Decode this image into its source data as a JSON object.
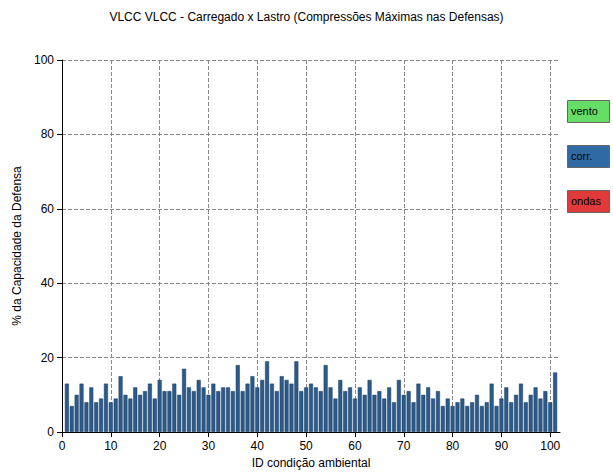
{
  "chart_data": {
    "type": "bar",
    "title": "VLCC VLCC - Carregado x Lastro (Compressões Máximas nas Defensas)",
    "x_label": "ID condição ambiental",
    "y_label": "% da Capacidade da Defensa",
    "x": [
      1,
      2,
      3,
      4,
      5,
      6,
      7,
      8,
      9,
      10,
      11,
      12,
      13,
      14,
      15,
      16,
      17,
      18,
      19,
      20,
      21,
      22,
      23,
      24,
      25,
      26,
      27,
      28,
      29,
      30,
      31,
      32,
      33,
      34,
      35,
      36,
      37,
      38,
      39,
      40,
      41,
      42,
      43,
      44,
      45,
      46,
      47,
      48,
      49,
      50,
      51,
      52,
      53,
      54,
      55,
      56,
      57,
      58,
      59,
      60,
      61,
      62,
      63,
      64,
      65,
      66,
      67,
      68,
      69,
      70,
      71,
      72,
      73,
      74,
      75,
      76,
      77,
      78,
      79,
      80,
      81,
      82,
      83,
      84,
      85,
      86,
      87,
      88,
      89,
      90,
      91,
      92,
      93,
      94,
      95,
      96,
      97,
      98,
      99,
      100,
      101
    ],
    "values": [
      13,
      7,
      10,
      13,
      8,
      12,
      8,
      9,
      13,
      8,
      9,
      15,
      10,
      9,
      12,
      10,
      11,
      13,
      9,
      14,
      11,
      11,
      13,
      10,
      17,
      12,
      11,
      14,
      12,
      10,
      13,
      11,
      12,
      12,
      11,
      18,
      11,
      13,
      15,
      12,
      14,
      19,
      13,
      11,
      15,
      14,
      13,
      19,
      11,
      12,
      13,
      12,
      11,
      18,
      12,
      9,
      14,
      11,
      12,
      9,
      12,
      10,
      14,
      10,
      11,
      9,
      12,
      8,
      14,
      10,
      11,
      8,
      13,
      10,
      12,
      9,
      11,
      7,
      9,
      7,
      8,
      9,
      7,
      8,
      10,
      7,
      8,
      13,
      7,
      9,
      12,
      8,
      10,
      13,
      8,
      10,
      12,
      9,
      11,
      8,
      16
    ],
    "color": "#2b5b8c",
    "xlim": [
      0,
      102
    ],
    "xticks": [
      0,
      10,
      20,
      30,
      40,
      50,
      60,
      70,
      80,
      90,
      100
    ],
    "ylim": [
      0,
      100
    ],
    "yticks": [
      0,
      20,
      40,
      60,
      80,
      100
    ],
    "grid": true,
    "legend": "right",
    "legend_boxes": [
      {
        "label": "vento",
        "color": "#66dd66"
      },
      {
        "label": "corr.",
        "color": "#2f6aa5"
      },
      {
        "label": "ondas",
        "color": "#e03a3a"
      }
    ]
  }
}
